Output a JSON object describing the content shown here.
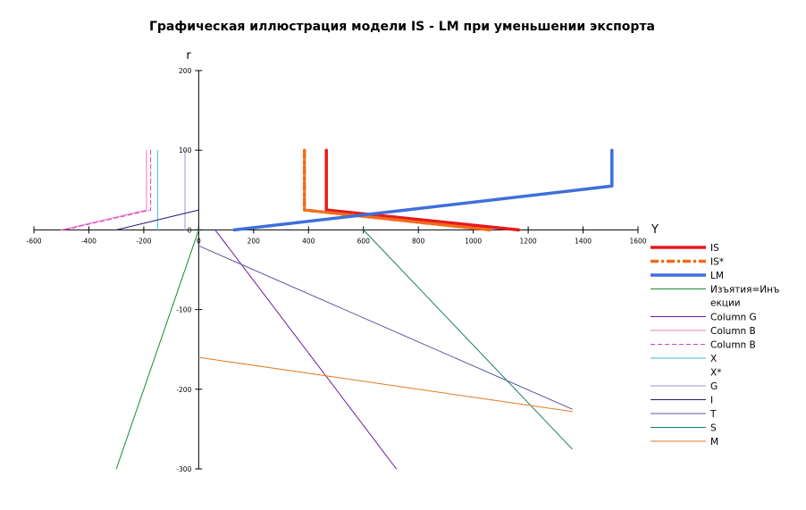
{
  "chart_data": {
    "type": "line",
    "title": "Графическая иллюстрация модели IS - LM при уменьшении экспорта",
    "xlabel": "Y",
    "ylabel": "r",
    "xlim": [
      -600,
      1600
    ],
    "ylim": [
      -300,
      200
    ],
    "x_ticks": [
      -600,
      -400,
      -200,
      0,
      200,
      400,
      600,
      800,
      1000,
      1200,
      1400,
      1600
    ],
    "y_ticks": [
      -300,
      -200,
      -100,
      0,
      100,
      200
    ],
    "grid": false,
    "legend_position": "right",
    "series": [
      {
        "name": "IS",
        "color": "#e8191b",
        "width": 3.5,
        "dash": "",
        "points": [
          [
            465,
            100
          ],
          [
            465,
            25
          ],
          [
            1165,
            0
          ]
        ]
      },
      {
        "name": "IS*",
        "color": "#f26b1a",
        "width": 3.5,
        "dash": "9,3,3,3",
        "points": [
          [
            385,
            100
          ],
          [
            385,
            25
          ],
          [
            1060,
            0
          ]
        ]
      },
      {
        "name": "LM",
        "color": "#3e6fdb",
        "width": 3.5,
        "dash": "",
        "points": [
          [
            130,
            0
          ],
          [
            1505,
            55
          ],
          [
            1505,
            100
          ]
        ]
      },
      {
        "name": "Изъятия=Инъекции",
        "legend_lines": [
          "Изъятия=Инъ",
          "екции"
        ],
        "color": "#1a8a2e",
        "width": 1,
        "dash": "",
        "points": [
          [
            0,
            0
          ],
          [
            -300,
            -300
          ]
        ]
      },
      {
        "name": "Column G",
        "color": "#6a1a9a",
        "width": 1,
        "dash": "",
        "points": [
          [
            60,
            0
          ],
          [
            720,
            -300
          ]
        ]
      },
      {
        "name": "Column B",
        "color": "#f07ab8",
        "width": 1,
        "dash": "",
        "points": [
          [
            -190,
            100
          ],
          [
            -190,
            25
          ],
          [
            -500,
            0
          ]
        ]
      },
      {
        "name": "Column B",
        "color": "#d63bd6",
        "width": 1,
        "dash": "5,3",
        "points": [
          [
            -175,
            100
          ],
          [
            -175,
            25
          ],
          [
            -490,
            0
          ]
        ]
      },
      {
        "name": "X",
        "color": "#40b8d6",
        "width": 1,
        "dash": "",
        "points": [
          [
            -150,
            100
          ],
          [
            -150,
            0
          ]
        ]
      },
      {
        "name": "X*",
        "color": "#ffffff",
        "width": 1,
        "dash": "",
        "points": []
      },
      {
        "name": "G",
        "color": "#a990d8",
        "width": 1,
        "dash": "",
        "points": [
          [
            -50,
            100
          ],
          [
            -50,
            0
          ]
        ]
      },
      {
        "name": "I",
        "color": "#1a1a7a",
        "width": 1,
        "dash": "",
        "points": [
          [
            -300,
            0
          ],
          [
            0,
            25
          ]
        ]
      },
      {
        "name": "T",
        "color": "#5a5aa8",
        "width": 1,
        "dash": "",
        "points": [
          [
            0,
            -20
          ],
          [
            1360,
            -225
          ]
        ]
      },
      {
        "name": "S",
        "color": "#1a7a6a",
        "width": 1,
        "dash": "",
        "points": [
          [
            600,
            0
          ],
          [
            1360,
            -275
          ]
        ]
      },
      {
        "name": "M",
        "color": "#e07a20",
        "width": 1,
        "dash": "",
        "points": [
          [
            0,
            -160
          ],
          [
            1360,
            -228
          ]
        ]
      }
    ]
  }
}
